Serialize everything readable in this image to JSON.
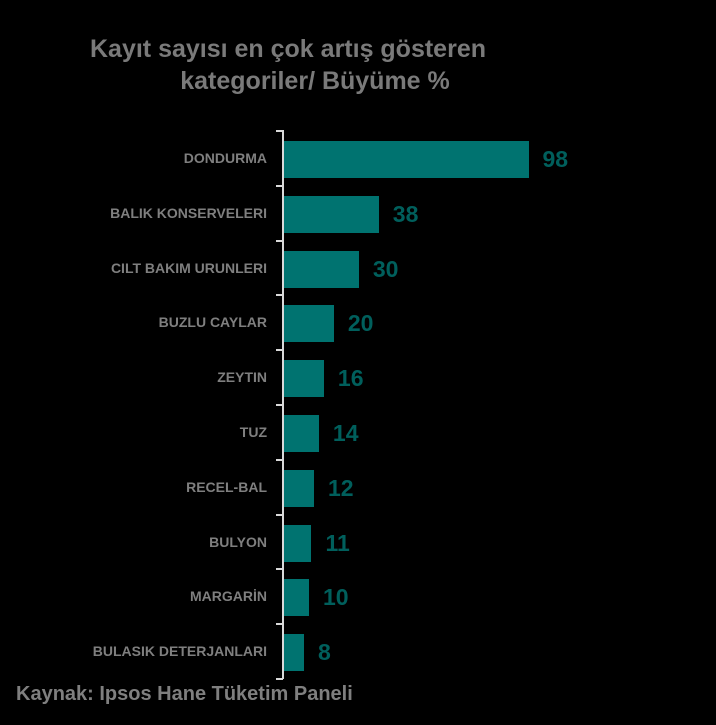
{
  "title": {
    "line1": "Kayıt sayısı en çok artış gösteren",
    "line2": "kategoriler/ Büyüme %"
  },
  "source": "Kaynak: Ipsos Hane Tüketim Paneli",
  "colors": {
    "bar": "#007370",
    "value_label": "#005f5c",
    "text": "#7f7f7f",
    "background": "#000000",
    "axis": "#d9d9d9"
  },
  "chart_data": {
    "type": "bar",
    "orientation": "horizontal",
    "title": "Kayıt sayısı en çok artış gösteren kategoriler/ Büyüme %",
    "xlabel": "",
    "ylabel": "",
    "categories": [
      "DONDURMA",
      "BALIK KONSERVELERI",
      "CILT BAKIM URUNLERI",
      "BUZLU CAYLAR",
      "ZEYTIN",
      "TUZ",
      "RECEL-BAL",
      "BULYON",
      "MARGARİN",
      "BULASIK DETERJANLARI"
    ],
    "values": [
      98,
      38,
      30,
      20,
      16,
      14,
      12,
      11,
      10,
      8
    ],
    "data_labels": true,
    "grid": false,
    "legend": null,
    "xlim": [
      0,
      100
    ]
  }
}
